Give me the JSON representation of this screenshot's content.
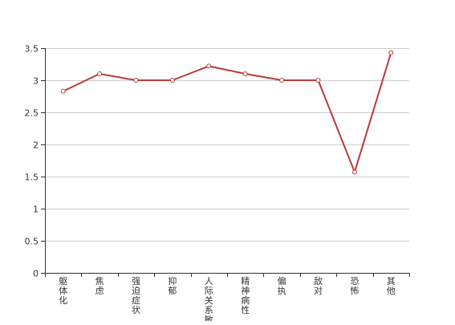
{
  "chart_data": {
    "type": "line",
    "title": "",
    "xlabel": "",
    "ylabel": "",
    "categories": [
      "躯体化",
      "焦虑",
      "强迫症状",
      "抑郁",
      "人际关系敏感",
      "精神病性",
      "偏执",
      "敌对",
      "恐怖",
      "其他"
    ],
    "series": [
      {
        "values": [
          2.83,
          3.1,
          3.0,
          3.0,
          3.22,
          3.1,
          3.0,
          3.0,
          1.57,
          3.43
        ]
      }
    ],
    "ylim": [
      0,
      3.5
    ],
    "yticks": [
      "0",
      "0.5",
      "1",
      "1.5",
      "2",
      "2.5",
      "3",
      "3.5"
    ],
    "grid": true,
    "legend": "none",
    "colors": {
      "line": "#b93a3a",
      "marker_fill": "#ffffff",
      "grid": "#cccccc",
      "axis": "#333333"
    }
  }
}
